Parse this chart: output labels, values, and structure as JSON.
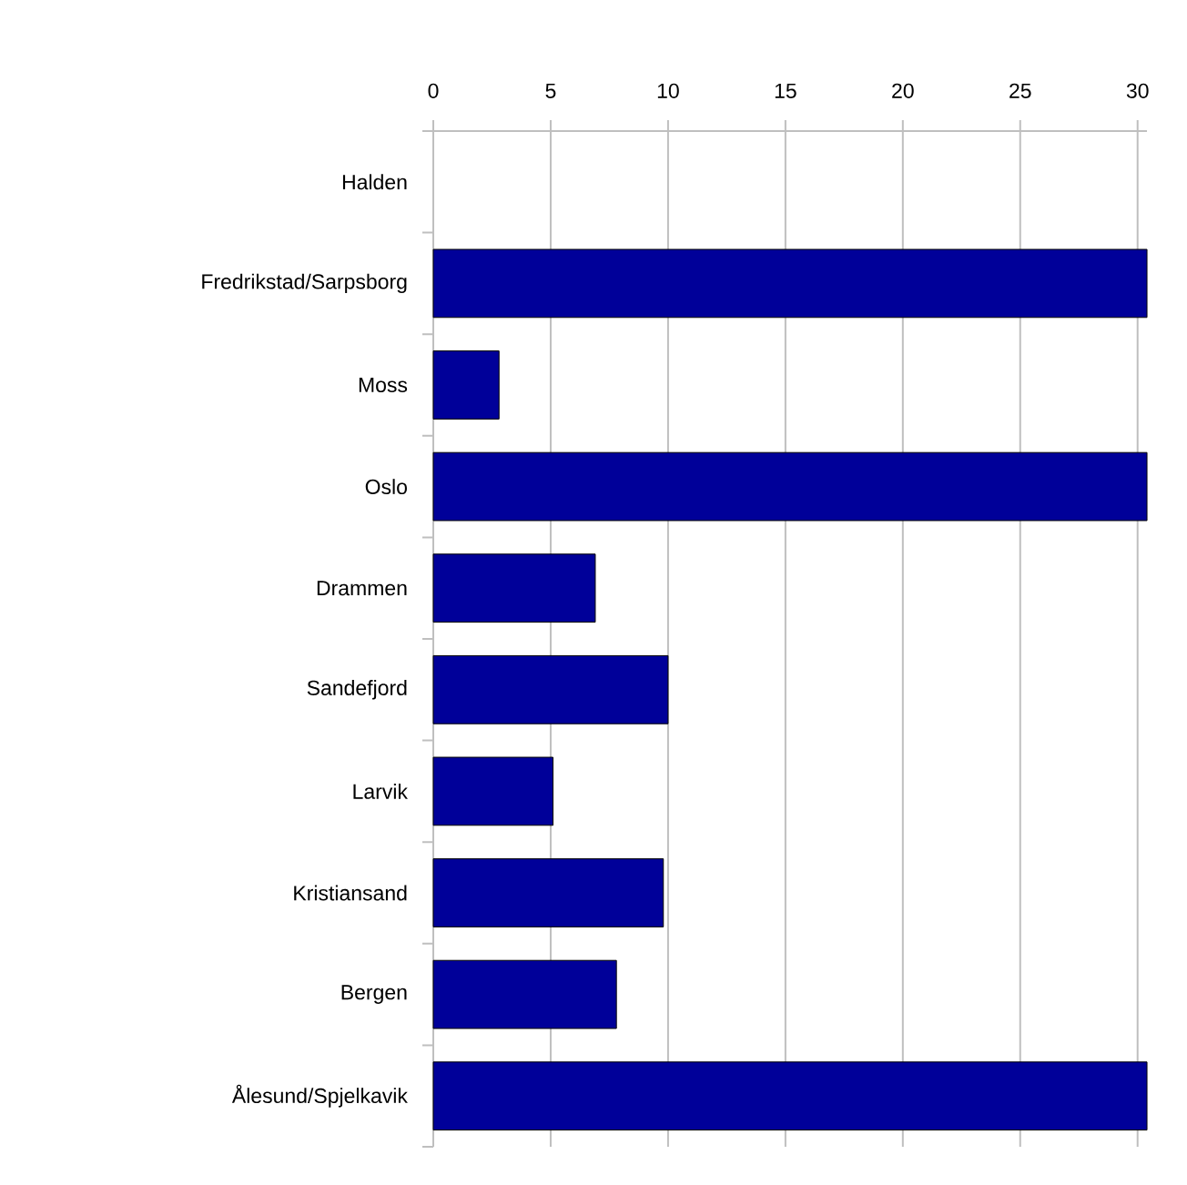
{
  "chart_data": {
    "type": "bar",
    "orientation": "horizontal",
    "categories": [
      "Halden",
      "Fredrikstad/Sarpsborg",
      "Moss",
      "Oslo",
      "Drammen",
      "Sandefjord",
      "Larvik",
      "Kristiansand",
      "Bergen",
      "Ålesund/Spjelkavik"
    ],
    "values": [
      null,
      30.4,
      2.8,
      30.4,
      6.9,
      10.0,
      5.1,
      9.8,
      7.8,
      30.4
    ],
    "color": "#000099",
    "xlim": [
      0,
      30.4
    ],
    "xticks": [
      0,
      5,
      10,
      15,
      20,
      25,
      30
    ],
    "grid": "x"
  }
}
